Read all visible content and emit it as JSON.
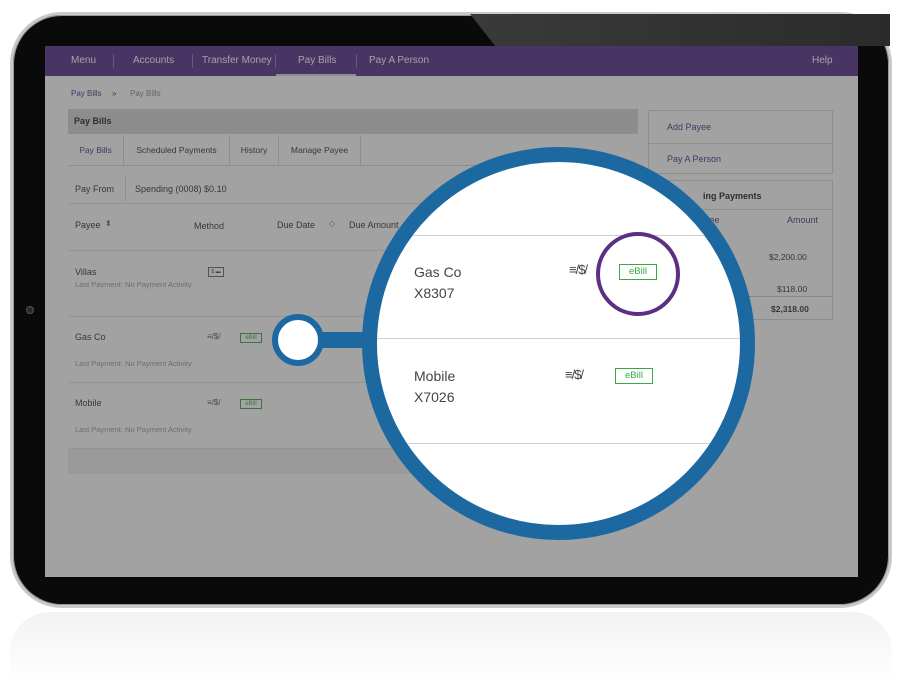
{
  "nav": {
    "items": [
      "Menu",
      "Accounts",
      "Transfer Money",
      "Pay Bills",
      "Pay A Person"
    ],
    "active": "Pay Bills",
    "help": "Help"
  },
  "breadcrumb": {
    "first": "Pay Bills",
    "sep": "»",
    "second": "Pay Bills"
  },
  "panel": {
    "title": "Pay Bills",
    "tabs": [
      "Pay Bills",
      "Scheduled Payments",
      "History",
      "Manage Payee"
    ],
    "pay_from_label": "Pay From",
    "pay_from_value": "Spending (0008) $0.10",
    "columns": {
      "payee": "Payee",
      "method": "Method",
      "due_date": "Due Date",
      "due_amount": "Due Amount"
    }
  },
  "payees": [
    {
      "name": "Villas",
      "status": "Last Payment: No Payment Activity"
    },
    {
      "name": "Gas Co",
      "status": "Last Payment: No Payment Activity",
      "ebill": "eBill"
    },
    {
      "name": "Mobile",
      "status": "Last Payment: No Payment Activity",
      "ebill": "eBill"
    }
  ],
  "sidebar": {
    "links": [
      "Add Payee",
      "Pay A Person"
    ],
    "pending_title": "ing Payments",
    "pending_col_payee": "yee",
    "pending_col_amount": "Amount",
    "amounts": [
      "$2,200.00",
      "$118.00"
    ],
    "total": "$2,318.00"
  },
  "magnifier": {
    "rows": [
      {
        "name": "Gas Co",
        "account": "X8307",
        "ebill": "eBill"
      },
      {
        "name": "Mobile",
        "account": "X7026",
        "ebill": "eBill"
      }
    ]
  },
  "colors": {
    "nav": "#532e87",
    "lens": "#1c69a2",
    "ebill": "#39a845",
    "highlight": "#5b2f84"
  }
}
